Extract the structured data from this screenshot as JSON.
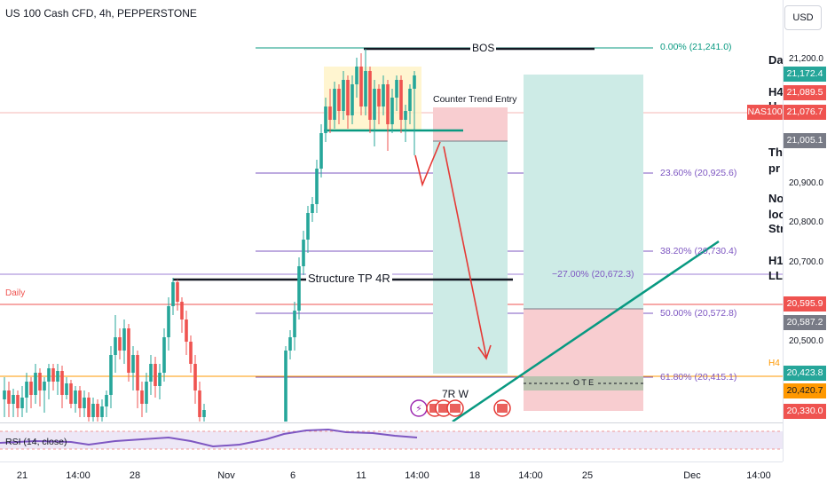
{
  "header": {
    "title": "US 100 Cash CFD, 4h, PEPPERSTONE",
    "currency": "USD"
  },
  "price_axis": {
    "ticks": [
      "21,200.0",
      "20,900.0",
      "20,800.0",
      "20,700.0",
      "20,500.0"
    ],
    "tags": [
      {
        "text": "21,172.4",
        "color": "#26a69a"
      },
      {
        "text": "21,089.5",
        "color": "#ef5350"
      },
      {
        "text": "21,076.7",
        "color": "#ef5350"
      },
      {
        "text": "21,005.1",
        "color": "#787b86"
      },
      {
        "text": "20,595.9",
        "color": "#ef5350"
      },
      {
        "text": "20,587.2",
        "color": "#787b86"
      },
      {
        "text": "20,423.8",
        "color": "#26a69a"
      },
      {
        "text": "20,420.7",
        "color": "#ff9800"
      },
      {
        "text": "20,330.0",
        "color": "#ef5350"
      }
    ],
    "symbol_tag": "NAS100"
  },
  "time_axis": [
    "21",
    "14:00",
    "28",
    "Nov",
    "6",
    "11",
    "14:00",
    "18",
    "14:00",
    "25",
    "Dec",
    "14:00"
  ],
  "fib": {
    "l0": "0.00% (21,241.0)",
    "l236": "23.60% (20,925.6)",
    "l382": "38.20% (20,730.4)",
    "lneg27": "−27.00% (20,672.3)",
    "l50": "50.00% (20,572.8)",
    "l618": "61.80% (20,415.1)"
  },
  "annotations": {
    "bos": "BOS",
    "counter_trend": "Counter Trend Entry",
    "structure_tp": "Structure TP 4R",
    "daily": "Daily",
    "h4": "H4",
    "ote": "O T E",
    "rr": "7R W"
  },
  "side_notes": [
    "Dai",
    "H4",
    "H",
    "The",
    "pr",
    "Not",
    "loc",
    "Str",
    "H1",
    "LL"
  ],
  "rsi": {
    "label": "RSI (14, close)"
  },
  "colors": {
    "up": "#26a69a",
    "down": "#ef5350",
    "fib": "#7e57c2",
    "trend": "#089981"
  }
}
